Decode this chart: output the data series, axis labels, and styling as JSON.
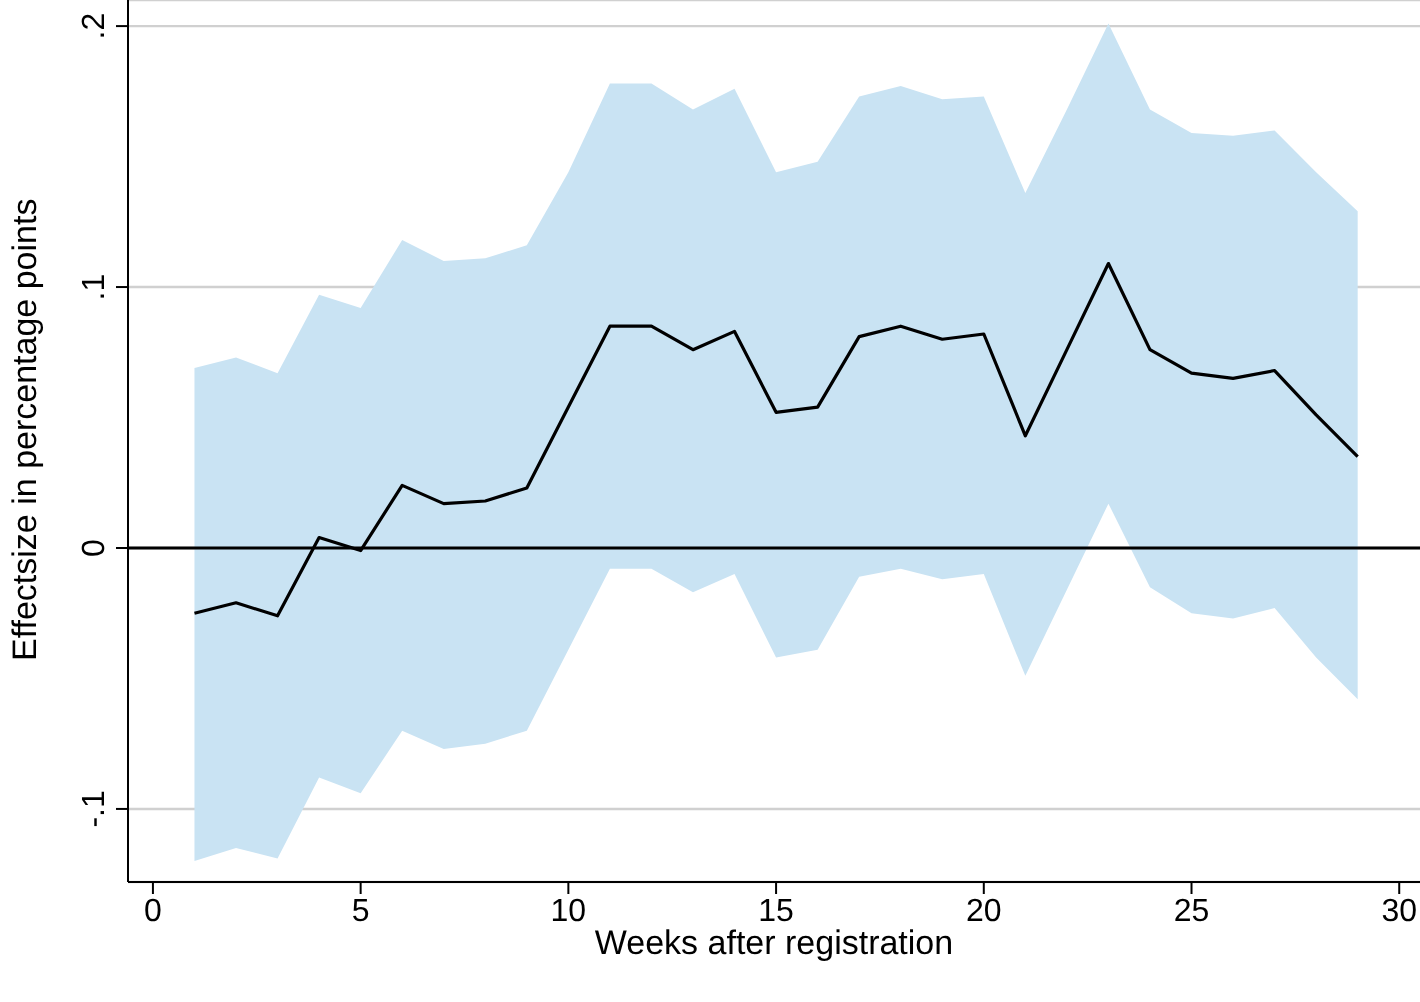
{
  "chart_data": {
    "type": "line",
    "xlabel": "Weeks after registration",
    "ylabel": "Effectsize in percentage points",
    "x": [
      1,
      2,
      3,
      4,
      5,
      6,
      7,
      8,
      9,
      10,
      11,
      12,
      13,
      14,
      15,
      16,
      17,
      18,
      19,
      20,
      21,
      22,
      23,
      24,
      25,
      26,
      27,
      28,
      29
    ],
    "series": [
      {
        "color": "#000000",
        "values": [
          -0.025,
          -0.021,
          -0.026,
          0.004,
          -0.001,
          0.024,
          0.017,
          0.018,
          0.023,
          0.054,
          0.085,
          0.085,
          0.076,
          0.083,
          0.052,
          0.054,
          0.081,
          0.085,
          0.08,
          0.082,
          0.043,
          0.076,
          0.109,
          0.076,
          0.067,
          0.065,
          0.068,
          0.051,
          0.035
        ],
        "lower": [
          -0.12,
          -0.115,
          -0.119,
          -0.088,
          -0.094,
          -0.07,
          -0.077,
          -0.075,
          -0.07,
          -0.039,
          -0.008,
          -0.008,
          -0.017,
          -0.01,
          -0.042,
          -0.039,
          -0.011,
          -0.008,
          -0.012,
          -0.01,
          -0.049,
          -0.016,
          0.017,
          -0.015,
          -0.025,
          -0.027,
          -0.023,
          -0.042,
          -0.058
        ],
        "upper": [
          0.069,
          0.073,
          0.067,
          0.097,
          0.092,
          0.118,
          0.11,
          0.111,
          0.116,
          0.144,
          0.178,
          0.178,
          0.168,
          0.176,
          0.144,
          0.148,
          0.173,
          0.177,
          0.172,
          0.173,
          0.136,
          0.168,
          0.201,
          0.168,
          0.159,
          0.158,
          0.16,
          0.144,
          0.129
        ]
      }
    ],
    "xlim": [
      -0.6,
      30.5
    ],
    "xticks": [
      0,
      5,
      10,
      15,
      20,
      25,
      30
    ],
    "ylim": [
      -0.128,
      0.21
    ],
    "yticks": [
      {
        "value": -0.1,
        "label": "-.1"
      },
      0,
      {
        "value": 0.1,
        "label": ".1"
      },
      {
        "value": 0.2,
        "label": ".2"
      }
    ],
    "ref_lines": [
      {
        "axis": "y",
        "value": 0,
        "color": "#000000"
      }
    ],
    "grid": "y",
    "marker": "none",
    "line_style": "solid"
  }
}
